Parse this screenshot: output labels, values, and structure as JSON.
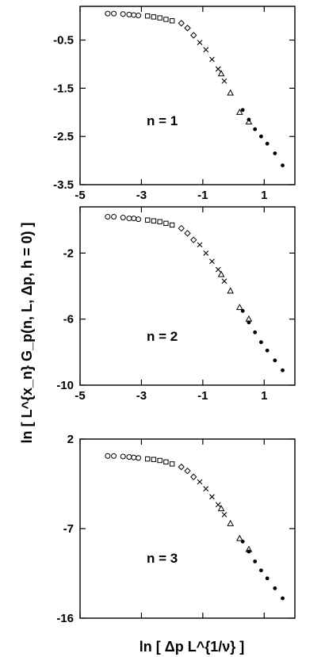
{
  "chart_data": [
    {
      "type": "scatter",
      "panel_label": "n = 1",
      "ylabel": "ln [ L^{x_n} G_p(n, L, Δp, h = 0) ]",
      "xlabel": "",
      "xlim": [
        -5,
        2
      ],
      "ylim": [
        -3.5,
        0.2
      ],
      "x_ticks": [
        "-5",
        "-3",
        "-1",
        "1"
      ],
      "y_ticks": [
        "-0.5",
        "-1.5",
        "-2.5",
        "-3.5"
      ],
      "x_tick_values": [
        -5,
        -3,
        -1,
        1
      ],
      "y_tick_values": [
        -0.5,
        -1.5,
        -2.5,
        -3.5
      ],
      "series": [
        {
          "marker": "circle",
          "x": [
            -4.1,
            -3.9,
            -3.6,
            -3.4,
            -3.25,
            -3.1
          ],
          "y": [
            0.05,
            0.05,
            0.04,
            0.03,
            0.02,
            0.01
          ]
        },
        {
          "marker": "square",
          "x": [
            -2.8,
            -2.6,
            -2.4,
            -2.2,
            -2.0
          ],
          "y": [
            0.0,
            -0.02,
            -0.04,
            -0.07,
            -0.1
          ]
        },
        {
          "marker": "diamond",
          "x": [
            -1.7,
            -1.5,
            -1.3
          ],
          "y": [
            -0.15,
            -0.25,
            -0.4
          ]
        },
        {
          "marker": "x",
          "x": [
            -1.1,
            -0.9,
            -0.7,
            -0.5,
            -0.3
          ],
          "y": [
            -0.55,
            -0.7,
            -0.9,
            -1.1,
            -1.35
          ]
        },
        {
          "marker": "triangle",
          "x": [
            -0.4,
            -0.1,
            0.2,
            0.5
          ],
          "y": [
            -1.2,
            -1.6,
            -2.0,
            -2.2
          ]
        },
        {
          "marker": "dot",
          "x": [
            0.3,
            0.5,
            0.7,
            0.9,
            1.1,
            1.35,
            1.6
          ],
          "y": [
            -1.95,
            -2.15,
            -2.35,
            -2.5,
            -2.65,
            -2.85,
            -3.1
          ]
        }
      ]
    },
    {
      "type": "scatter",
      "panel_label": "n = 2",
      "xlabel": "",
      "ylabel": "",
      "xlim": [
        -5,
        2
      ],
      "ylim": [
        -10,
        0.8
      ],
      "x_ticks": [
        "-5",
        "-3",
        "-1",
        "1"
      ],
      "y_ticks": [
        "-2",
        "-6",
        "-10"
      ],
      "x_tick_values": [
        -5,
        -3,
        -1,
        1
      ],
      "y_tick_values": [
        -2,
        -6,
        -10
      ],
      "series": [
        {
          "marker": "circle",
          "x": [
            -4.1,
            -3.9,
            -3.6,
            -3.4,
            -3.25,
            -3.1
          ],
          "y": [
            0.2,
            0.2,
            0.15,
            0.1,
            0.1,
            0.05
          ]
        },
        {
          "marker": "square",
          "x": [
            -2.8,
            -2.6,
            -2.4,
            -2.2,
            -2.0
          ],
          "y": [
            0.0,
            -0.05,
            -0.1,
            -0.2,
            -0.3
          ]
        },
        {
          "marker": "diamond",
          "x": [
            -1.7,
            -1.5,
            -1.3
          ],
          "y": [
            -0.5,
            -0.8,
            -1.2
          ]
        },
        {
          "marker": "x",
          "x": [
            -1.1,
            -0.9,
            -0.7,
            -0.5,
            -0.3
          ],
          "y": [
            -1.5,
            -2.0,
            -2.5,
            -3.0,
            -3.7
          ]
        },
        {
          "marker": "triangle",
          "x": [
            -0.4,
            -0.1,
            0.2,
            0.5
          ],
          "y": [
            -3.3,
            -4.3,
            -5.3,
            -6.0
          ]
        },
        {
          "marker": "dot",
          "x": [
            0.3,
            0.5,
            0.7,
            0.9,
            1.1,
            1.35,
            1.6
          ],
          "y": [
            -5.5,
            -6.2,
            -6.8,
            -7.4,
            -7.9,
            -8.5,
            -9.1
          ]
        }
      ]
    },
    {
      "type": "scatter",
      "panel_label": "n = 3",
      "xlabel": "ln [ Δp L^{1/ν} ]",
      "ylabel": "",
      "xlim": [
        -5,
        2
      ],
      "ylim": [
        -16,
        2
      ],
      "x_ticks": [],
      "y_ticks": [
        "2",
        "-7",
        "-16"
      ],
      "x_tick_values": [
        -5,
        -3,
        -1,
        1
      ],
      "y_tick_values": [
        2,
        -7,
        -16
      ],
      "series": [
        {
          "marker": "circle",
          "x": [
            -4.1,
            -3.9,
            -3.6,
            -3.4,
            -3.25,
            -3.1
          ],
          "y": [
            0.3,
            0.3,
            0.25,
            0.2,
            0.15,
            0.1
          ]
        },
        {
          "marker": "square",
          "x": [
            -2.8,
            -2.6,
            -2.4,
            -2.2,
            -2.0
          ],
          "y": [
            0.0,
            -0.05,
            -0.15,
            -0.3,
            -0.5
          ]
        },
        {
          "marker": "diamond",
          "x": [
            -1.7,
            -1.5,
            -1.3
          ],
          "y": [
            -0.8,
            -1.2,
            -1.8
          ]
        },
        {
          "marker": "x",
          "x": [
            -1.1,
            -0.9,
            -0.7,
            -0.5,
            -0.3
          ],
          "y": [
            -2.3,
            -3.0,
            -3.8,
            -4.6,
            -5.6
          ]
        },
        {
          "marker": "triangle",
          "x": [
            -0.4,
            -0.1,
            0.2,
            0.5
          ],
          "y": [
            -5.0,
            -6.5,
            -8.0,
            -9.1
          ]
        },
        {
          "marker": "dot",
          "x": [
            0.3,
            0.5,
            0.7,
            0.9,
            1.1,
            1.35,
            1.6
          ],
          "y": [
            -8.3,
            -9.3,
            -10.3,
            -11.2,
            -12.0,
            -13.0,
            -14.0
          ]
        }
      ]
    }
  ]
}
